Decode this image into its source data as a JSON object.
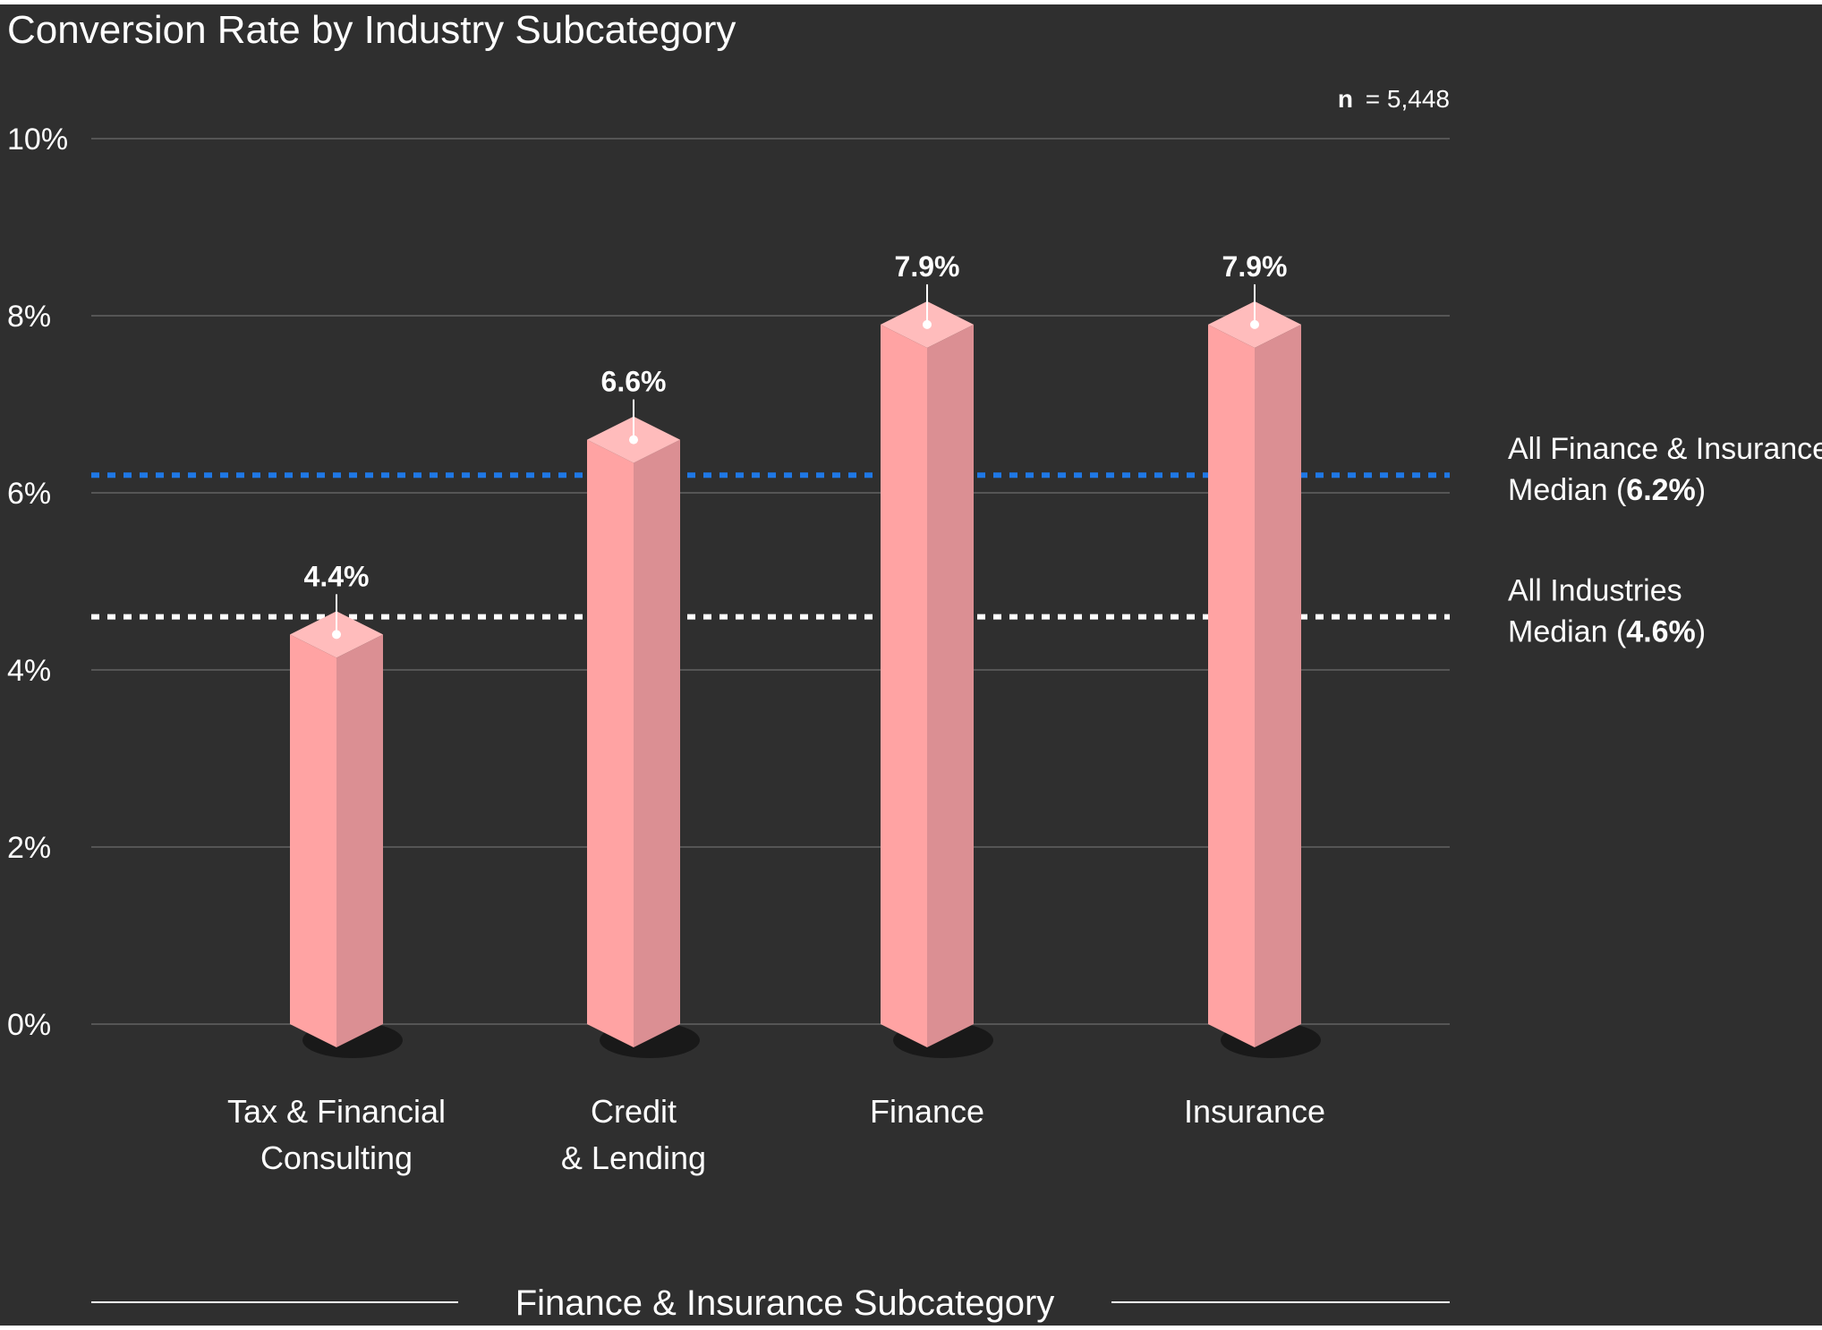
{
  "colors": {
    "background": "#2f2f2f",
    "grid": "#555555",
    "axis_text": "#ffffff",
    "bar_front": "#ffa3a3",
    "bar_side": "#db8f93",
    "bar_top": "#ffbcbc",
    "finance_median_line": "#1f78e6",
    "industry_median_line": "#ffffff"
  },
  "chart_data": {
    "type": "bar",
    "title": "Conversion Rate by Industry Subcategory",
    "xlabel": "Finance & Insurance Subcategory",
    "ylabel": "",
    "ylim": [
      0,
      10
    ],
    "yticks": [
      "0%",
      "2%",
      "4%",
      "6%",
      "8%",
      "10%"
    ],
    "ytick_values": [
      0,
      2,
      4,
      6,
      8,
      10
    ],
    "grid": true,
    "sample_size": {
      "label": "n",
      "value": "= 5,448"
    },
    "categories": [
      {
        "lines": [
          "Tax & Financial",
          "Consulting"
        ],
        "value": 4.4,
        "label": "4.4%"
      },
      {
        "lines": [
          "Credit",
          "& Lending"
        ],
        "value": 6.6,
        "label": "6.6%"
      },
      {
        "lines": [
          "Finance"
        ],
        "value": 7.9,
        "label": "7.9%"
      },
      {
        "lines": [
          "Insurance"
        ],
        "value": 7.9,
        "label": "7.9%"
      }
    ],
    "reference_lines": [
      {
        "key": "finance_median",
        "value": 6.2,
        "style": "dotted",
        "line1": "All Finance & Insurance",
        "line2_prefix": "Median (",
        "line2_bold": "6.2%",
        "line2_suffix": ")"
      },
      {
        "key": "industry_median",
        "value": 4.6,
        "style": "dotted",
        "line1": "All Industries",
        "line2_prefix": "Median (",
        "line2_bold": "4.6%",
        "line2_suffix": ")"
      }
    ]
  }
}
